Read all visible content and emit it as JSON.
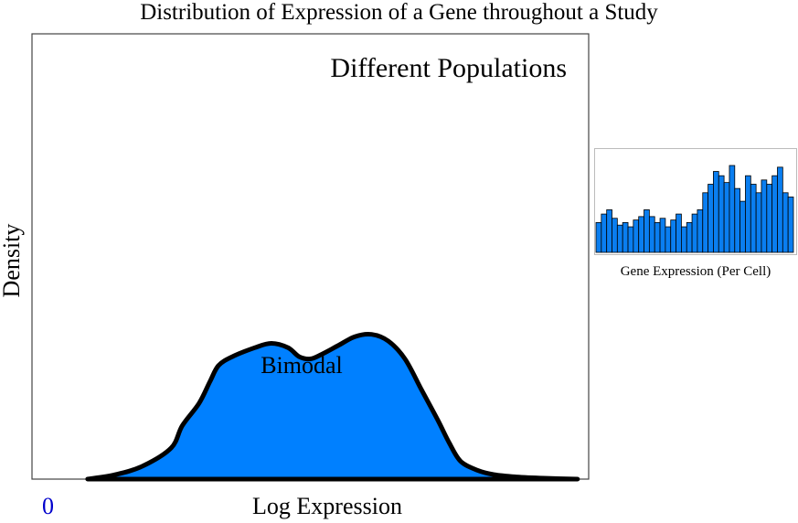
{
  "chart_data": [
    {
      "type": "area",
      "title": "Distribution of Expression of a Gene throughout a Study",
      "subtitle": "Different Populations",
      "xlabel": "Log Expression",
      "ylabel": "Density",
      "x_tick_labels": [
        "0"
      ],
      "annotation": "Bimodal",
      "grid": false,
      "fill_color": "#0080ff",
      "line_color": "#000000",
      "zero_label_color": "#0000cc",
      "xlim": [
        0,
        1
      ],
      "ylim": [
        0,
        1
      ],
      "x": [
        0.1,
        0.15,
        0.2,
        0.25,
        0.27,
        0.3,
        0.32,
        0.335,
        0.36,
        0.4,
        0.43,
        0.46,
        0.48,
        0.5,
        0.52,
        0.55,
        0.58,
        0.61,
        0.64,
        0.67,
        0.7,
        0.73,
        0.75,
        0.77,
        0.8,
        0.83,
        0.87,
        0.92,
        0.98
      ],
      "y": [
        0.0,
        0.01,
        0.03,
        0.07,
        0.12,
        0.17,
        0.22,
        0.255,
        0.275,
        0.295,
        0.305,
        0.295,
        0.275,
        0.27,
        0.28,
        0.3,
        0.32,
        0.325,
        0.31,
        0.27,
        0.2,
        0.13,
        0.08,
        0.04,
        0.02,
        0.01,
        0.005,
        0.002,
        0.0
      ]
    },
    {
      "type": "bar",
      "xlabel": "Gene Expression (Per Cell)",
      "fill_color": "#0a7ef0",
      "edge_color": "#000000",
      "values": [
        0.35,
        0.45,
        0.5,
        0.4,
        0.32,
        0.35,
        0.3,
        0.38,
        0.42,
        0.5,
        0.42,
        0.35,
        0.4,
        0.3,
        0.38,
        0.45,
        0.3,
        0.35,
        0.45,
        0.5,
        0.7,
        0.8,
        0.95,
        0.9,
        0.82,
        1.02,
        0.75,
        0.6,
        0.9,
        0.8,
        0.7,
        0.85,
        0.8,
        0.9,
        1.0,
        0.7,
        0.65
      ]
    }
  ]
}
